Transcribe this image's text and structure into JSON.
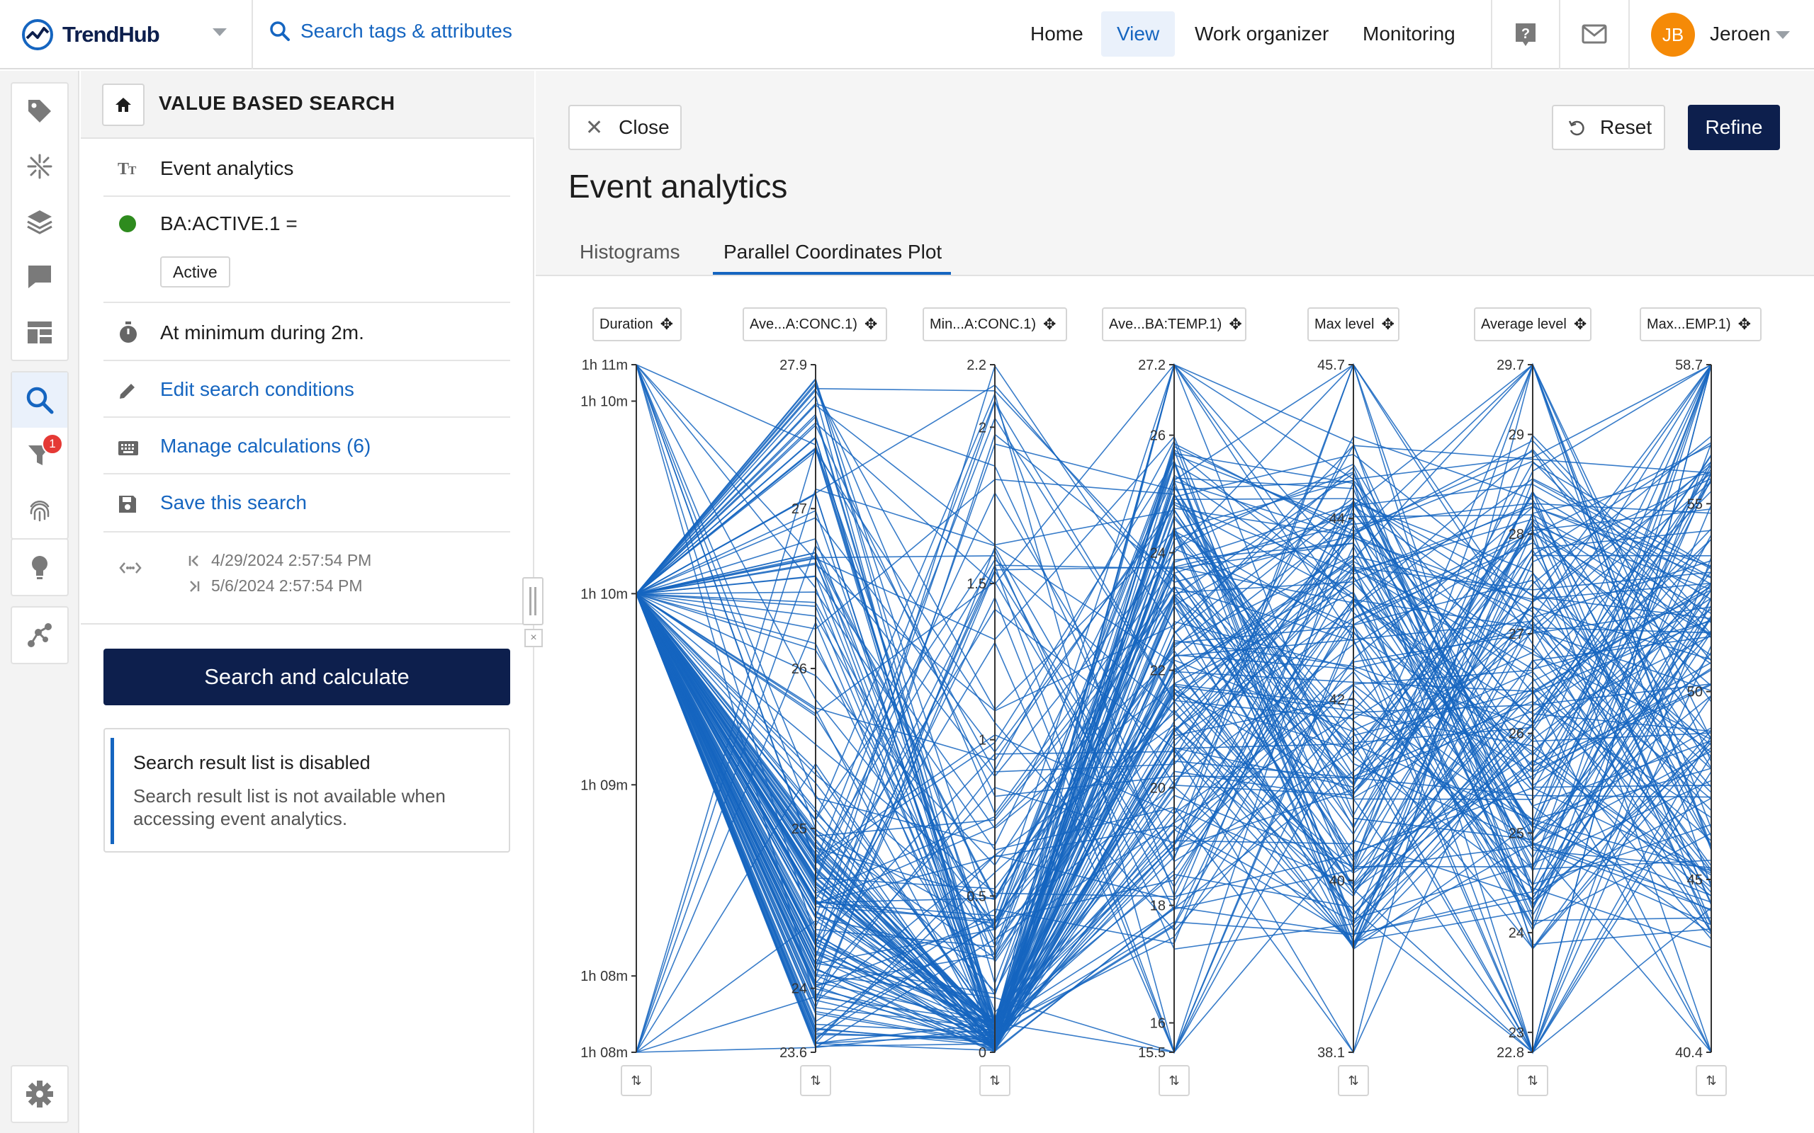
{
  "header": {
    "brand": "TrendHub",
    "search_label": "Search tags & attributes",
    "nav": [
      "Home",
      "View",
      "Work organizer",
      "Monitoring"
    ],
    "nav_active": "View",
    "user_initials": "JB",
    "user_name": "Jeroen",
    "avatar_color": "#f58a07"
  },
  "rail": {
    "items": [
      "tag-icon",
      "sparkle-icon",
      "layers-icon",
      "comment-icon",
      "dashboard-icon",
      "search-icon",
      "filter-icon",
      "fingerprint-icon",
      "lightbulb-icon",
      "graph-icon",
      "gear-icon"
    ],
    "active": "search-icon",
    "filter_badge": "1"
  },
  "panel": {
    "title": "VALUE BASED SEARCH",
    "name": "Event analytics",
    "condition": "BA:ACTIVE.1 =",
    "condition_value": "Active",
    "condition_status_color": "#2e8b1e",
    "duration_rule": "At minimum during 2m.",
    "edit_link": "Edit search conditions",
    "calc_link": "Manage calculations (6)",
    "save_link": "Save this search",
    "date_start": "4/29/2024 2:57:54 PM",
    "date_end": "5/6/2024 2:57:54 PM",
    "search_button": "Search and calculate",
    "info_title": "Search result list is disabled",
    "info_body": "Search result list is not available when accessing event analytics."
  },
  "main": {
    "close_label": "Close",
    "reset_label": "Reset",
    "refine_label": "Refine",
    "title": "Event analytics",
    "tabs": [
      "Histograms",
      "Parallel Coordinates Plot"
    ],
    "active_tab": "Parallel Coordinates Plot"
  },
  "chart_data": {
    "type": "parallel-coordinates",
    "line_color": "#1565c0",
    "axes": [
      {
        "name": "Duration",
        "min": 4080,
        "max": 4260,
        "ticks": [
          4080,
          4140,
          4200,
          4260
        ],
        "tick_labels": [
          "1h 08m",
          "1h 09m",
          "1h 10m",
          "1h 11m"
        ],
        "extra_ticks": [
          {
            "v": 4260,
            "label": "1h 11m"
          }
        ],
        "top_label": "1h 11m",
        "bottom_label": "1h 08m",
        "extreme_labels": [
          "1h 11m",
          "1h 10m",
          "1h 10m",
          "1h 09m",
          "1h 08m",
          "1h 08m"
        ]
      },
      {
        "name": "Ave...A:CONC.1)",
        "min": 23.6,
        "max": 27.9,
        "ticks": [
          24,
          25,
          26,
          27
        ],
        "top_label": "27.9",
        "bottom_label": "23.6"
      },
      {
        "name": "Min...A:CONC.1)",
        "min": 0,
        "max": 2.2,
        "ticks": [
          0.5,
          1,
          1.5,
          2
        ],
        "top_label": "2.2",
        "bottom_label": "0"
      },
      {
        "name": "Ave...BA:TEMP.1)",
        "min": 15.5,
        "max": 27.2,
        "ticks": [
          16,
          18,
          20,
          22,
          24,
          26
        ],
        "top_label": "27.2",
        "bottom_label": "15.5"
      },
      {
        "name": "Max level",
        "min": 38.1,
        "max": 45.7,
        "ticks": [
          40,
          42,
          44
        ],
        "top_label": "45.7",
        "bottom_label": "38.1"
      },
      {
        "name": "Average level",
        "min": 22.8,
        "max": 29.7,
        "ticks": [
          23,
          24,
          25,
          26,
          27,
          28,
          29
        ],
        "top_label": "29.7",
        "bottom_label": "22.8"
      },
      {
        "name": "Max...EMP.1)",
        "min": 40.4,
        "max": 58.7,
        "ticks": [
          45,
          50,
          55
        ],
        "top_label": "58.7",
        "bottom_label": "40.4"
      }
    ],
    "duration_axis_labels": [
      "1h 11m",
      "1h 10m",
      "1h 10m",
      "1h 09m",
      "1h 08m",
      "1h 08m"
    ],
    "line_count": 180,
    "grid": false,
    "legend": "none"
  }
}
